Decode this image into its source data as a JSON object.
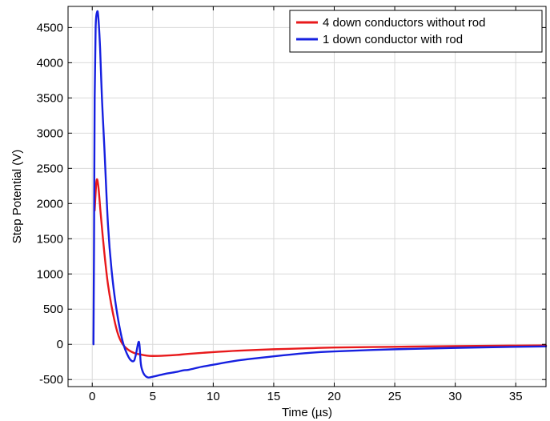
{
  "chart_data": {
    "type": "line",
    "title": "",
    "xlabel": "Time (µs)",
    "ylabel": "Step Potential (V)",
    "xlim": [
      -2,
      37.5
    ],
    "ylim": [
      -600,
      4800
    ],
    "xticks": [
      0,
      5,
      10,
      15,
      20,
      25,
      30,
      35
    ],
    "yticks": [
      -500,
      0,
      500,
      1000,
      1500,
      2000,
      2500,
      3000,
      3500,
      4000,
      4500
    ],
    "grid": true,
    "legend_position": "top-right",
    "series": [
      {
        "name": "4 down conductors without rod",
        "color": "#e8191b",
        "x": [
          0.2,
          0.35,
          0.5,
          0.7,
          1.0,
          1.3,
          1.7,
          2.1,
          2.5,
          3.0,
          3.5,
          4.0,
          4.5,
          5.0,
          6.0,
          7.0,
          8.0,
          10.0,
          12.0,
          15.0,
          18.0,
          20.0,
          25.0,
          30.0,
          35.0,
          37.5
        ],
        "y": [
          1900,
          2320,
          2250,
          1850,
          1300,
          850,
          450,
          160,
          5,
          -80,
          -125,
          -145,
          -160,
          -165,
          -160,
          -150,
          -135,
          -110,
          -90,
          -70,
          -55,
          -45,
          -35,
          -25,
          -18,
          -15
        ]
      },
      {
        "name": "1 down conductor with rod",
        "color": "#1620e0",
        "x": [
          0.1,
          0.15,
          0.2,
          0.28,
          0.4,
          0.5,
          0.65,
          0.8,
          1.0,
          1.3,
          1.6,
          2.0,
          2.5,
          3.0,
          3.4,
          3.6,
          3.8,
          3.9,
          4.0,
          4.1,
          4.3,
          4.6,
          5.0,
          6.0,
          7.0,
          7.5,
          8.0,
          9.0,
          10.0,
          12.0,
          15.0,
          18.0,
          20.0,
          25.0,
          30.0,
          35.0,
          37.5
        ],
        "y": [
          0,
          1500,
          3500,
          4500,
          4720,
          4650,
          4200,
          3500,
          2800,
          1700,
          1050,
          500,
          50,
          -180,
          -240,
          -150,
          20,
          0,
          -250,
          -350,
          -430,
          -470,
          -460,
          -420,
          -390,
          -370,
          -360,
          -320,
          -290,
          -230,
          -170,
          -120,
          -100,
          -70,
          -50,
          -35,
          -30
        ]
      }
    ]
  }
}
